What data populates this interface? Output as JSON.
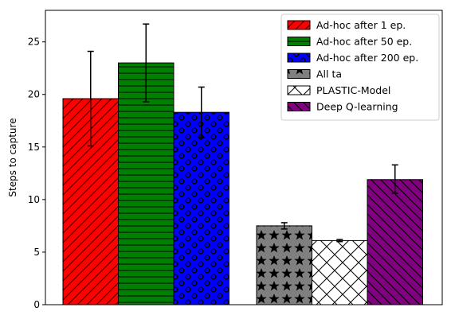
{
  "chart_data": {
    "type": "bar",
    "title": "",
    "xlabel": "",
    "ylabel": "Steps to capture",
    "ylim": [
      0,
      28
    ],
    "yticks": [
      0,
      5,
      10,
      15,
      20,
      25
    ],
    "grid": false,
    "legend_placement": "top-right",
    "series": [
      {
        "name": "Ad-hoc after 1 ep.",
        "value": 19.6,
        "err_low": 15.1,
        "err_high": 24.1,
        "color": "#ff0000",
        "hatch": "diagonal-forward"
      },
      {
        "name": "Ad-hoc after 50 ep.",
        "value": 23.0,
        "err_low": 19.3,
        "err_high": 26.7,
        "color": "#008000",
        "hatch": "horizontal"
      },
      {
        "name": "Ad-hoc after 200 ep.",
        "value": 18.3,
        "err_low": 15.9,
        "err_high": 20.7,
        "color": "#0000ff",
        "hatch": "circles"
      },
      {
        "name": "All ta",
        "value": 7.5,
        "err_low": 7.2,
        "err_high": 7.8,
        "color": "#808080",
        "hatch": "stars"
      },
      {
        "name": "PLASTIC-Model",
        "value": 6.1,
        "err_low": 6.0,
        "err_high": 6.2,
        "color": "#ffffff",
        "hatch": "crosshatch"
      },
      {
        "name": "Deep Q-learning",
        "value": 11.9,
        "err_low": 10.6,
        "err_high": 13.3,
        "color": "#800080",
        "hatch": "diagonal-back"
      }
    ]
  }
}
